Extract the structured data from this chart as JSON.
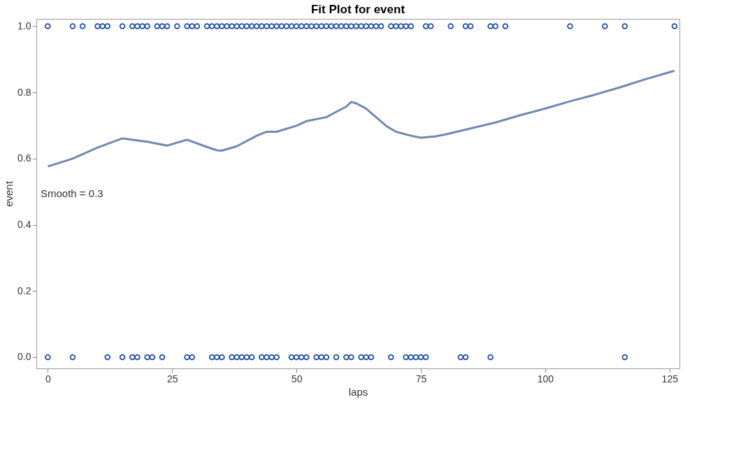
{
  "chart_data": {
    "type": "scatter",
    "title": "Fit Plot for event",
    "xlabel": "laps",
    "ylabel": "event",
    "xlim": [
      -2.3,
      127
    ],
    "xticks": [
      0,
      25,
      50,
      75,
      100,
      125
    ],
    "ylim": [
      -0.034,
      1.022
    ],
    "yticks": [
      {
        "value": 0,
        "label": "0.0"
      },
      0.2,
      0.4,
      0.6,
      0.8,
      {
        "value": 1,
        "label": "1.0"
      }
    ],
    "marker": "circle",
    "grid": false,
    "annotations": [
      "Smooth = 0.3"
    ],
    "series": [
      {
        "color": "#1f4ea3",
        "x": [
          0,
          5,
          7,
          10,
          11,
          12,
          15,
          17,
          18,
          19,
          20,
          22,
          23,
          24,
          26,
          28,
          29,
          30,
          32,
          33,
          34,
          35,
          36,
          37,
          38,
          39,
          40,
          41,
          42,
          43,
          44,
          45,
          46,
          47,
          48,
          49,
          50,
          51,
          52,
          53,
          54,
          55,
          56,
          57,
          58,
          59,
          60,
          61,
          62,
          63,
          64,
          65,
          66,
          67,
          69,
          70,
          71,
          72,
          73,
          76,
          77,
          81,
          84,
          85,
          89,
          90,
          92,
          105,
          112,
          116,
          126
        ],
        "values": [
          1,
          1,
          1,
          1,
          1,
          1,
          1,
          1,
          1,
          1,
          1,
          1,
          1,
          1,
          1,
          1,
          1,
          1,
          1,
          1,
          1,
          1,
          1,
          1,
          1,
          1,
          1,
          1,
          1,
          1,
          1,
          1,
          1,
          1,
          1,
          1,
          1,
          1,
          1,
          1,
          1,
          1,
          1,
          1,
          1,
          1,
          1,
          1,
          1,
          1,
          1,
          1,
          1,
          1,
          1,
          1,
          1,
          1,
          1,
          1,
          1,
          1,
          1,
          1,
          1,
          1,
          1,
          1,
          1,
          1,
          1
        ]
      },
      {
        "color": "#1f4ea3",
        "x": [
          0,
          5,
          12,
          15,
          17,
          18,
          20,
          21,
          23,
          28,
          29,
          33,
          34,
          35,
          37,
          38,
          39,
          40,
          41,
          43,
          44,
          45,
          46,
          49,
          50,
          51,
          52,
          54,
          55,
          56,
          58,
          60,
          61,
          63,
          64,
          65,
          69,
          72,
          73,
          74,
          75,
          76,
          83,
          84,
          89,
          116
        ],
        "values": [
          0,
          0,
          0,
          0,
          0,
          0,
          0,
          0,
          0,
          0,
          0,
          0,
          0,
          0,
          0,
          0,
          0,
          0,
          0,
          0,
          0,
          0,
          0,
          0,
          0,
          0,
          0,
          0,
          0,
          0,
          0,
          0,
          0,
          0,
          0,
          0,
          0,
          0,
          0,
          0,
          0,
          0,
          0,
          0,
          0,
          0
        ]
      },
      {
        "type": "line",
        "color": "#7088b0",
        "marker": "none",
        "x": [
          0,
          5,
          10,
          15,
          20,
          24,
          28,
          32,
          34,
          35,
          38,
          42,
          44,
          46,
          50,
          52,
          56,
          58,
          60,
          61,
          62,
          64,
          66,
          68,
          70,
          73,
          75,
          78,
          80,
          85,
          90,
          95,
          100,
          105,
          110,
          115,
          120,
          125,
          126
        ],
        "values": [
          0.576,
          0.6,
          0.633,
          0.661,
          0.651,
          0.639,
          0.657,
          0.635,
          0.625,
          0.624,
          0.637,
          0.669,
          0.681,
          0.681,
          0.699,
          0.713,
          0.725,
          0.741,
          0.757,
          0.771,
          0.767,
          0.751,
          0.725,
          0.699,
          0.681,
          0.669,
          0.663,
          0.667,
          0.673,
          0.691,
          0.709,
          0.731,
          0.751,
          0.773,
          0.793,
          0.815,
          0.839,
          0.861,
          0.865
        ]
      }
    ]
  }
}
